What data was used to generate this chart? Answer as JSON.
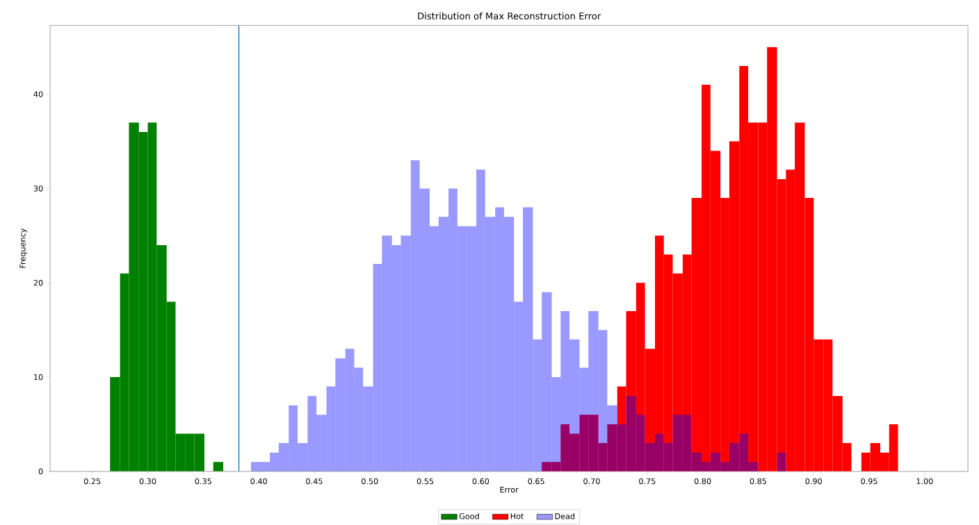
{
  "chart_data": {
    "type": "histogram",
    "title": "Distribution of Max Reconstruction Error",
    "xlabel": "Error",
    "ylabel": "Frequency",
    "bins": [
      0.266,
      0.275,
      0.283,
      0.292,
      0.3,
      0.308,
      0.317,
      0.325,
      0.334,
      0.342,
      0.351,
      0.359,
      0.368,
      0.393,
      0.401,
      0.41,
      0.418,
      0.427,
      0.435,
      0.444,
      0.452,
      0.461,
      0.469,
      0.478,
      0.486,
      0.494,
      0.503,
      0.511,
      0.52,
      0.528,
      0.537,
      0.545,
      0.554,
      0.562,
      0.571,
      0.579,
      0.587,
      0.596,
      0.604,
      0.613,
      0.621,
      0.63,
      0.638,
      0.647,
      0.655,
      0.664,
      0.672,
      0.68,
      0.689,
      0.697,
      0.706,
      0.714,
      0.723,
      0.731,
      0.74,
      0.748,
      0.757,
      0.765,
      0.773,
      0.782,
      0.79,
      0.799,
      0.807,
      0.816,
      0.824,
      0.833,
      0.841,
      0.85,
      0.858,
      0.867,
      0.875,
      0.883,
      0.892,
      0.9,
      0.909,
      0.917,
      0.926,
      0.934,
      0.943,
      0.951,
      0.96,
      0.968,
      0.976
    ],
    "series": [
      {
        "name": "Good",
        "color": "#008000",
        "values": [
          10,
          21,
          37,
          36,
          37,
          24,
          18,
          4,
          4,
          4,
          0,
          1,
          null,
          null,
          null,
          null,
          null,
          null,
          null,
          null,
          null,
          null,
          null,
          null,
          null,
          null,
          null,
          null,
          null,
          null,
          null,
          null,
          null,
          null,
          null,
          null,
          null,
          null,
          null,
          null,
          null,
          null,
          null,
          null,
          null,
          null,
          null,
          null,
          null,
          null,
          null,
          null,
          null,
          null,
          null,
          null,
          null,
          null,
          null,
          null,
          null,
          null,
          null,
          null,
          null,
          null,
          null,
          null,
          null,
          null,
          null,
          null,
          null,
          null,
          null,
          null,
          null,
          null,
          null,
          null,
          null,
          null
        ]
      },
      {
        "name": "Hot",
        "color": "#ff0000",
        "values": [
          null,
          null,
          null,
          null,
          null,
          null,
          null,
          null,
          null,
          null,
          null,
          null,
          null,
          null,
          null,
          null,
          null,
          null,
          null,
          null,
          null,
          null,
          null,
          null,
          null,
          null,
          null,
          null,
          null,
          null,
          null,
          null,
          null,
          null,
          null,
          null,
          null,
          null,
          null,
          null,
          null,
          null,
          null,
          null,
          1,
          1,
          5,
          4,
          6,
          6,
          3,
          5,
          9,
          17,
          20,
          13,
          25,
          23,
          21,
          23,
          29,
          41,
          34,
          29,
          35,
          43,
          37,
          37,
          45,
          31,
          32,
          37,
          29,
          14,
          14,
          8,
          3,
          0,
          2,
          3,
          2,
          5
        ]
      },
      {
        "name": "Dead",
        "color": "#9999ff",
        "values": [
          null,
          null,
          null,
          null,
          null,
          null,
          null,
          null,
          null,
          null,
          null,
          null,
          null,
          1,
          1,
          2,
          3,
          7,
          3,
          8,
          6,
          9,
          12,
          13,
          11,
          9,
          22,
          25,
          24,
          25,
          33,
          30,
          26,
          27,
          30,
          26,
          26,
          32,
          27,
          28,
          27,
          18,
          28,
          14,
          19,
          10,
          17,
          14,
          11,
          17,
          15,
          7,
          5,
          8,
          6,
          3,
          4,
          3,
          6,
          6,
          2,
          1,
          2,
          1,
          3,
          4,
          1,
          0,
          0,
          2,
          null,
          null,
          null,
          null,
          null,
          null,
          null,
          null,
          null,
          null,
          null,
          null
        ]
      }
    ],
    "ref_lines": [
      {
        "axis": "x",
        "value": 0.382,
        "color": "#1f77b4"
      }
    ],
    "xlim": [
      0.212,
      1.039
    ],
    "ylim": [
      0,
      47.3
    ],
    "xticks": [
      {
        "value": 0.25,
        "label": "0.25"
      },
      {
        "value": 0.3,
        "label": "0.30"
      },
      {
        "value": 0.35,
        "label": "0.35"
      },
      {
        "value": 0.4,
        "label": "0.40"
      },
      {
        "value": 0.45,
        "label": "0.45"
      },
      {
        "value": 0.5,
        "label": "0.50"
      },
      {
        "value": 0.55,
        "label": "0.55"
      },
      {
        "value": 0.6,
        "label": "0.60"
      },
      {
        "value": 0.65,
        "label": "0.65"
      },
      {
        "value": 0.7,
        "label": "0.70"
      },
      {
        "value": 0.75,
        "label": "0.75"
      },
      {
        "value": 0.8,
        "label": "0.80"
      },
      {
        "value": 0.85,
        "label": "0.85"
      },
      {
        "value": 0.9,
        "label": "0.90"
      },
      {
        "value": 0.95,
        "label": "0.95"
      },
      {
        "value": 1.0,
        "label": "1.00"
      }
    ],
    "yticks": [
      0,
      10,
      20,
      30,
      40
    ],
    "legend": "bottom"
  }
}
